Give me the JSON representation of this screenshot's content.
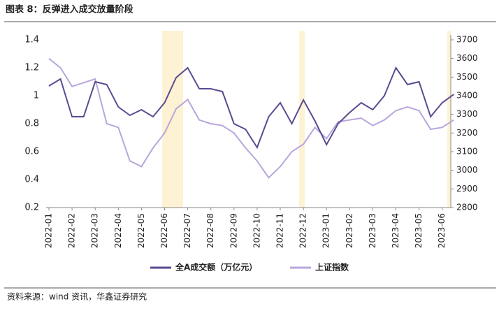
{
  "title": "图表 8：反弹进入成交放量阶段",
  "source": "资料来源：wind 资讯，华鑫证券研究",
  "chart_data": {
    "type": "line",
    "categories": [
      "2022-01",
      null,
      "2022-02",
      null,
      "2022-03",
      null,
      "2022-04",
      null,
      "2022-05",
      null,
      "2022-06",
      null,
      "2022-07",
      null,
      "2022-08",
      null,
      "2022-09",
      null,
      "2022-10",
      null,
      "2022-11",
      null,
      "2022-12",
      null,
      "2023-01",
      null,
      "2023-02",
      null,
      "2023-03",
      null,
      "2023-04",
      null,
      "2023-05",
      null,
      "2023-06",
      null
    ],
    "series": [
      {
        "name": "全A成交额（万亿元）",
        "color": "#5c4a92",
        "axis": "y",
        "values": [
          1.07,
          1.12,
          0.85,
          0.85,
          1.1,
          1.08,
          0.92,
          0.86,
          0.9,
          0.85,
          0.95,
          1.13,
          1.2,
          1.05,
          1.05,
          1.03,
          0.8,
          0.76,
          0.63,
          0.85,
          0.95,
          0.8,
          0.97,
          0.82,
          0.65,
          0.8,
          0.88,
          0.95,
          0.9,
          1.0,
          1.2,
          1.08,
          1.1,
          0.85,
          0.95,
          1.01
        ]
      },
      {
        "name": "上证指数",
        "color": "#b8a6dc",
        "axis": "y2",
        "values": [
          3600,
          3550,
          3450,
          3470,
          3490,
          3250,
          3230,
          3050,
          3020,
          3120,
          3200,
          3330,
          3380,
          3270,
          3250,
          3240,
          3200,
          3120,
          3050,
          2960,
          3020,
          3100,
          3140,
          3230,
          3170,
          3260,
          3270,
          3280,
          3240,
          3270,
          3320,
          3340,
          3320,
          3220,
          3230,
          3270
        ]
      }
    ],
    "ylim": [
      0.2,
      1.4
    ],
    "yticks": [
      0.2,
      0.4,
      0.6,
      0.8,
      1,
      1.2,
      1.4
    ],
    "y2lim": [
      2800,
      3700
    ],
    "y2ticks": [
      2800,
      2900,
      3000,
      3100,
      3200,
      3300,
      3400,
      3500,
      3600,
      3700
    ],
    "legend": "bottom"
  }
}
